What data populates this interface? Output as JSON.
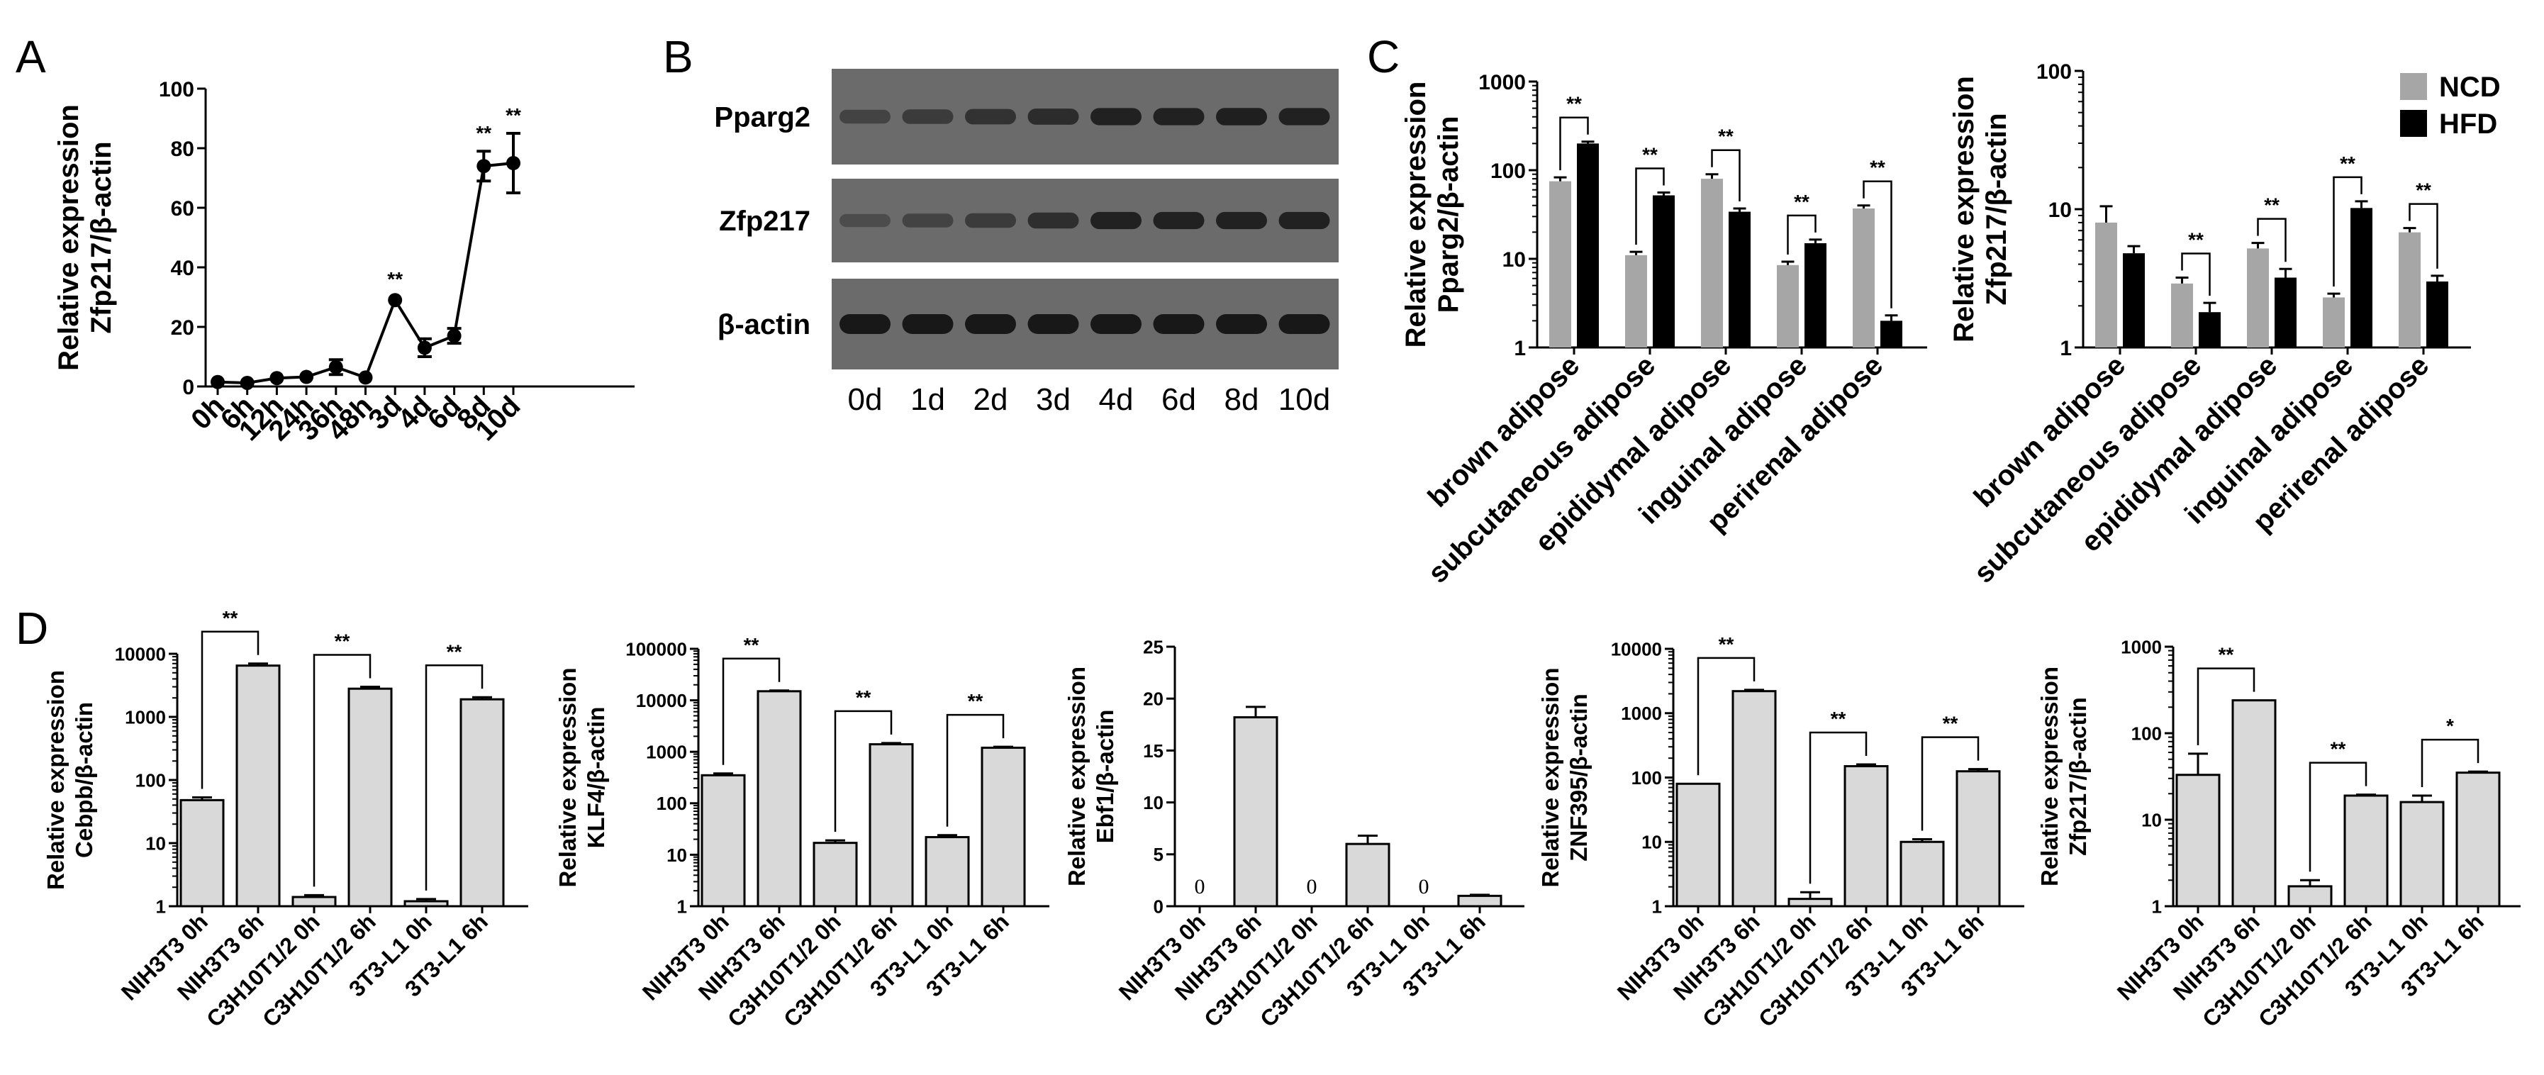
{
  "panels": {
    "A": {
      "letter": "A"
    },
    "B": {
      "letter": "B"
    },
    "C": {
      "letter": "C"
    },
    "D": {
      "letter": "D"
    }
  },
  "chart_data": [
    {
      "id": "A",
      "type": "line",
      "title": "",
      "ylabel_line1": "Relative expression",
      "ylabel_line2": "Zfp217/β-actin",
      "ylim": [
        0,
        100
      ],
      "yticks": [
        0,
        20,
        40,
        60,
        80,
        100
      ],
      "categories": [
        "0h",
        "6h",
        "12h",
        "24h",
        "36h",
        "48h",
        "3d",
        "4d",
        "6d",
        "8d",
        "10d"
      ],
      "values": [
        1.5,
        1.2,
        2.8,
        3.2,
        6.5,
        3.0,
        29,
        13,
        17,
        74,
        75
      ],
      "errors": [
        0.5,
        0.4,
        0.6,
        0.6,
        2.5,
        0.5,
        1.0,
        3.0,
        2.5,
        5.0,
        10.0
      ],
      "significance": [
        "",
        "",
        "",
        "",
        "",
        "",
        "**",
        "",
        "",
        "**",
        "**"
      ]
    },
    {
      "id": "B",
      "type": "western-blot",
      "rows": [
        "Pparg2",
        "Zfp217",
        "β-actin"
      ],
      "lanes": [
        "0d",
        "1d",
        "2d",
        "3d",
        "4d",
        "6d",
        "8d",
        "10d"
      ],
      "intensities": [
        [
          0.45,
          0.55,
          0.65,
          0.72,
          0.85,
          0.85,
          0.88,
          0.85
        ],
        [
          0.35,
          0.45,
          0.55,
          0.7,
          0.85,
          0.85,
          0.85,
          0.85
        ],
        [
          0.95,
          0.95,
          0.95,
          0.95,
          0.95,
          0.95,
          0.95,
          0.95
        ]
      ]
    },
    {
      "id": "C1",
      "type": "bar",
      "scale": "log",
      "ylabel_line1": "Relative expression",
      "ylabel_line2": "Pparg2/β-actin",
      "ylim": [
        1,
        1000
      ],
      "yticks": [
        "1",
        "10",
        "100",
        "1000"
      ],
      "categories": [
        "brown adipose",
        "subcutaneous adipose",
        "epididymal adipose",
        "inguinal adipose",
        "perirenal adipose"
      ],
      "series": [
        {
          "name": "NCD",
          "values": [
            75,
            11,
            80,
            8.5,
            37
          ],
          "errors": [
            8,
            1,
            10,
            0.8,
            3
          ]
        },
        {
          "name": "HFD",
          "values": [
            200,
            52,
            34,
            15,
            2
          ],
          "errors": [
            10,
            4,
            3,
            1.5,
            0.3
          ]
        }
      ],
      "significance": [
        "**",
        "**",
        "**",
        "**",
        "**"
      ]
    },
    {
      "id": "C2",
      "type": "bar",
      "scale": "log",
      "ylabel_line1": "Relative expression",
      "ylabel_line2": "Zfp217/β-actin",
      "ylim": [
        1,
        100
      ],
      "yticks": [
        "1",
        "10",
        "100"
      ],
      "categories": [
        "brown adipose",
        "subcutaneous adipose",
        "epididymal adipose",
        "inguinal adipose",
        "perirenal adipose"
      ],
      "series": [
        {
          "name": "NCD",
          "values": [
            8,
            2.9,
            5.2,
            2.3,
            6.8
          ],
          "errors": [
            2.5,
            0.3,
            0.5,
            0.15,
            0.5
          ]
        },
        {
          "name": "HFD",
          "values": [
            4.8,
            1.8,
            3.2,
            10.2,
            3.0
          ],
          "errors": [
            0.6,
            0.3,
            0.5,
            1.2,
            0.3
          ]
        }
      ],
      "significance": [
        "",
        "**",
        "**",
        "**",
        "**"
      ],
      "legend": [
        "NCD",
        "HFD"
      ]
    },
    {
      "id": "D1",
      "type": "bar",
      "scale": "log",
      "ylabel_line1": "Relative expression",
      "ylabel_line2": "Cebpb/β-actin",
      "ylim": [
        1,
        10000
      ],
      "yticks": [
        "1",
        "10",
        "100",
        "1000",
        "10000"
      ],
      "categories": [
        "NIH3T3 0h",
        "NIH3T3 6h",
        "C3H10T1/2 0h",
        "C3H10T1/2 6h",
        "3T3-L1 0h",
        "3T3-L1 6h"
      ],
      "values": [
        48,
        6500,
        1.4,
        2800,
        1.2,
        1900
      ],
      "errors": [
        5,
        500,
        0.1,
        200,
        0.1,
        150
      ],
      "zero_labels": [
        false,
        false,
        false,
        false,
        false,
        false
      ],
      "brackets": [
        {
          "from": 0,
          "to": 1,
          "label": "**"
        },
        {
          "from": 2,
          "to": 3,
          "label": "**"
        },
        {
          "from": 4,
          "to": 5,
          "label": "**"
        }
      ]
    },
    {
      "id": "D2",
      "type": "bar",
      "scale": "log",
      "ylabel_line1": "Relative expression",
      "ylabel_line2": "KLF4/β-actin",
      "ylim": [
        1,
        100000
      ],
      "yticks": [
        "1",
        "10",
        "100",
        "1000",
        "10000",
        "100000"
      ],
      "categories": [
        "NIH3T3 0h",
        "NIH3T3 6h",
        "C3H10T1/2 0h",
        "C3H10T1/2 6h",
        "3T3-L1 0h",
        "3T3-L1 6h"
      ],
      "values": [
        350,
        15000,
        17,
        1400,
        22,
        1200
      ],
      "errors": [
        30,
        500,
        2,
        80,
        2,
        50
      ],
      "zero_labels": [
        false,
        false,
        false,
        false,
        false,
        false
      ],
      "brackets": [
        {
          "from": 0,
          "to": 1,
          "label": "**"
        },
        {
          "from": 2,
          "to": 3,
          "label": "**"
        },
        {
          "from": 4,
          "to": 5,
          "label": "**"
        }
      ]
    },
    {
      "id": "D3",
      "type": "bar",
      "scale": "linear",
      "ylabel_line1": "Relative expression",
      "ylabel_line2": "Ebf1/β-actin",
      "ylim": [
        0,
        25
      ],
      "yticks": [
        "0",
        "5",
        "10",
        "15",
        "20",
        "25"
      ],
      "categories": [
        "NIH3T3 0h",
        "NIH3T3 6h",
        "C3H10T1/2 0h",
        "C3H10T1/2 6h",
        "3T3-L1 0h",
        "3T3-L1 6h"
      ],
      "values": [
        0,
        18.2,
        0,
        6,
        0,
        1
      ],
      "errors": [
        0,
        1,
        0,
        0.8,
        0,
        0.1
      ],
      "zero_labels": [
        true,
        false,
        true,
        false,
        true,
        false
      ],
      "zero_text": "0",
      "brackets": []
    },
    {
      "id": "D4",
      "type": "bar",
      "scale": "log",
      "ylabel_line1": "Relative expression",
      "ylabel_line2": "ZNF395/β-actin",
      "ylim": [
        1,
        10000
      ],
      "yticks": [
        "1",
        "10",
        "100",
        "1000",
        "10000"
      ],
      "categories": [
        "NIH3T3 0h",
        "NIH3T3 6h",
        "C3H10T1/2 0h",
        "C3H10T1/2 6h",
        "3T3-L1 0h",
        "3T3-L1 6h"
      ],
      "values": [
        80,
        2200,
        1.3,
        150,
        10,
        125
      ],
      "errors": [
        0,
        100,
        0.35,
        10,
        1,
        10
      ],
      "zero_labels": [
        false,
        false,
        false,
        false,
        false,
        false
      ],
      "brackets": [
        {
          "from": 0,
          "to": 1,
          "label": "**"
        },
        {
          "from": 2,
          "to": 3,
          "label": "**"
        },
        {
          "from": 4,
          "to": 5,
          "label": "**"
        }
      ]
    },
    {
      "id": "D5",
      "type": "bar",
      "scale": "log",
      "ylabel_line1": "Relative expression",
      "ylabel_line2": "Zfp217/β-actin",
      "ylim": [
        1,
        1000
      ],
      "yticks": [
        "1",
        "10",
        "100",
        "1000"
      ],
      "categories": [
        "NIH3T3 0h",
        "NIH3T3 6h",
        "C3H10T1/2 0h",
        "C3H10T1/2 6h",
        "3T3-L1 0h",
        "3T3-L1 6h"
      ],
      "values": [
        33,
        240,
        1.7,
        19,
        16,
        35
      ],
      "errors": [
        25,
        0,
        0.3,
        0.5,
        3,
        1
      ],
      "zero_labels": [
        false,
        false,
        false,
        false,
        false,
        false
      ],
      "brackets": [
        {
          "from": 0,
          "to": 1,
          "label": "**"
        },
        {
          "from": 2,
          "to": 3,
          "label": "**"
        },
        {
          "from": 4,
          "to": 5,
          "label": "*"
        }
      ]
    }
  ],
  "colors": {
    "ncd": "#a6a6a6",
    "hfd": "#000000",
    "d_bar": "#d9d9d9",
    "axis": "#000000",
    "blot_bg": "#6b6b6b",
    "band": "#141414"
  }
}
